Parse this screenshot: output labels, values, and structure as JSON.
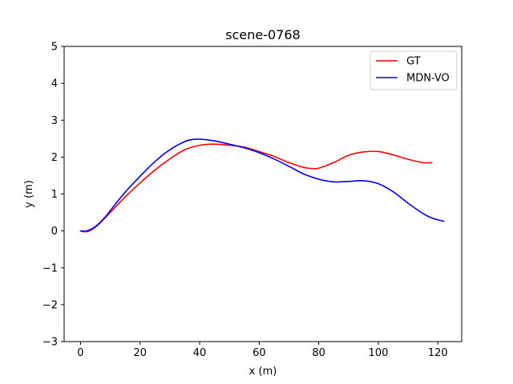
{
  "chart_data": {
    "type": "line",
    "title": "scene-0768",
    "xlabel": "x (m)",
    "ylabel": "y (m)",
    "xlim": [
      -5.5,
      128
    ],
    "ylim": [
      -3,
      5
    ],
    "xticks": [
      0,
      20,
      40,
      60,
      80,
      100,
      120
    ],
    "yticks": [
      -3,
      -2,
      -1,
      0,
      1,
      2,
      3,
      4,
      5
    ],
    "xtick_labels": [
      "0",
      "20",
      "40",
      "60",
      "80",
      "100",
      "120"
    ],
    "ytick_labels": [
      "−3",
      "−2",
      "−1",
      "0",
      "1",
      "2",
      "3",
      "4",
      "5"
    ],
    "grid": false,
    "legend_position": "top-right",
    "series": [
      {
        "name": "GT",
        "color": "#ff0000",
        "x": [
          0,
          1,
          2,
          3,
          5,
          7,
          10,
          15,
          20,
          25,
          30,
          35,
          40,
          45,
          50,
          55,
          60,
          65,
          70,
          75,
          78,
          80,
          85,
          90,
          95,
          100,
          105,
          110,
          115,
          118
        ],
        "y": [
          0,
          -0.02,
          -0.02,
          0.0,
          0.1,
          0.25,
          0.5,
          0.92,
          1.3,
          1.65,
          1.95,
          2.2,
          2.32,
          2.35,
          2.32,
          2.27,
          2.15,
          2.02,
          1.85,
          1.72,
          1.69,
          1.7,
          1.85,
          2.05,
          2.14,
          2.15,
          2.06,
          1.94,
          1.85,
          1.85
        ]
      },
      {
        "name": "MDN-VO",
        "color": "#0000ff",
        "x": [
          0,
          2,
          5,
          8,
          10,
          15,
          20,
          25,
          30,
          35,
          38,
          41,
          45,
          50,
          55,
          60,
          65,
          70,
          75,
          80,
          85,
          90,
          95,
          100,
          105,
          110,
          115,
          118,
          122
        ],
        "y": [
          0,
          0.0,
          0.12,
          0.35,
          0.55,
          1.05,
          1.48,
          1.88,
          2.2,
          2.42,
          2.48,
          2.48,
          2.44,
          2.35,
          2.25,
          2.12,
          1.95,
          1.75,
          1.54,
          1.4,
          1.33,
          1.34,
          1.36,
          1.28,
          1.06,
          0.75,
          0.47,
          0.35,
          0.26
        ]
      }
    ]
  }
}
